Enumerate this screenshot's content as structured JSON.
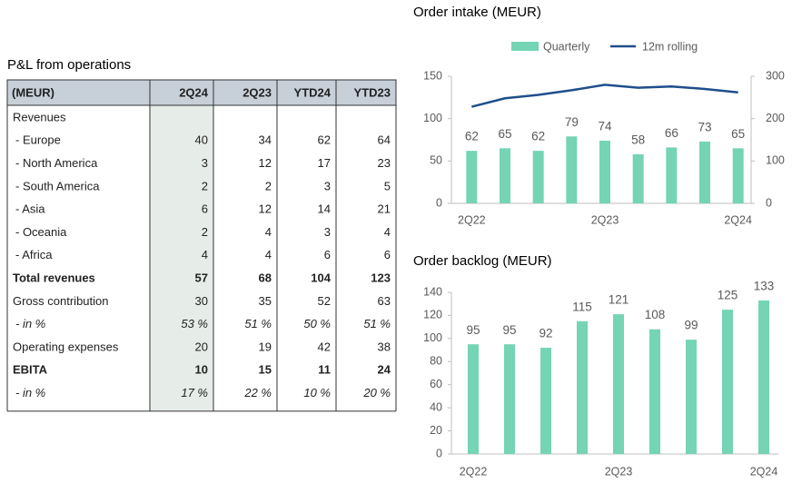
{
  "table": {
    "title": "P&L from operations",
    "header": [
      "(MEUR)",
      "2Q24",
      "2Q23",
      "YTD24",
      "YTD23"
    ],
    "rows": [
      {
        "label": "Revenues"
      },
      {
        "label": "- Europe",
        "cells": [
          "40",
          "34",
          "62",
          "64"
        ]
      },
      {
        "label": "- North America",
        "cells": [
          "3",
          "12",
          "17",
          "23"
        ]
      },
      {
        "label": "- South America",
        "cells": [
          "2",
          "2",
          "3",
          "5"
        ]
      },
      {
        "label": "- Asia",
        "cells": [
          "6",
          "12",
          "14",
          "21"
        ]
      },
      {
        "label": "- Oceania",
        "cells": [
          "2",
          "4",
          "3",
          "4"
        ]
      },
      {
        "label": "- Africa",
        "cells": [
          "4",
          "4",
          "6",
          "6"
        ]
      },
      {
        "label": "Total revenues",
        "cells": [
          "57",
          "68",
          "104",
          "123"
        ],
        "style": "bold"
      },
      {
        "label": "Gross contribution",
        "cells": [
          "30",
          "35",
          "52",
          "63"
        ]
      },
      {
        "label": "- in %",
        "cells": [
          "53 %",
          "51 %",
          "50 %",
          "51 %"
        ],
        "style": "italic"
      },
      {
        "label": "Operating expenses",
        "cells": [
          "20",
          "19",
          "42",
          "38"
        ]
      },
      {
        "label": "EBITA",
        "cells": [
          "10",
          "15",
          "11",
          "24"
        ],
        "style": "bold"
      },
      {
        "label": "- in %",
        "cells": [
          "17 %",
          "22 %",
          "10 %",
          "20 %"
        ],
        "style": "italic"
      }
    ]
  },
  "chart_data": [
    {
      "type": "bar",
      "title": "Order intake (MEUR)",
      "categories": [
        "2Q22",
        null,
        null,
        null,
        "2Q23",
        null,
        null,
        null,
        "2Q24"
      ],
      "legend": "top",
      "ylim": [
        0,
        150
      ],
      "yticks": [
        0,
        50,
        100,
        150
      ],
      "y2lim": [
        0,
        300
      ],
      "y2ticks": [
        0,
        100,
        200,
        300
      ],
      "series": [
        {
          "name": "Quarterly",
          "color": "#74d4b4",
          "values": [
            62,
            65,
            62,
            79,
            74,
            58,
            66,
            73,
            65
          ]
        },
        {
          "name": "12m rolling",
          "color": "#1f4e8c",
          "type": "line",
          "axis": "y2",
          "values": [
            228,
            248,
            256,
            267,
            280,
            273,
            276,
            270,
            262
          ]
        }
      ]
    },
    {
      "type": "bar",
      "title": "Order backlog (MEUR)",
      "categories": [
        "2Q22",
        null,
        null,
        null,
        "2Q23",
        null,
        null,
        null,
        "2Q24"
      ],
      "ylim": [
        0,
        140
      ],
      "yticks": [
        0,
        20,
        40,
        60,
        80,
        100,
        120,
        140
      ],
      "series": [
        {
          "name": "Order backlog",
          "color": "#74d4b4",
          "values": [
            95,
            95,
            92,
            115,
            121,
            108,
            99,
            125,
            133
          ]
        }
      ]
    }
  ]
}
